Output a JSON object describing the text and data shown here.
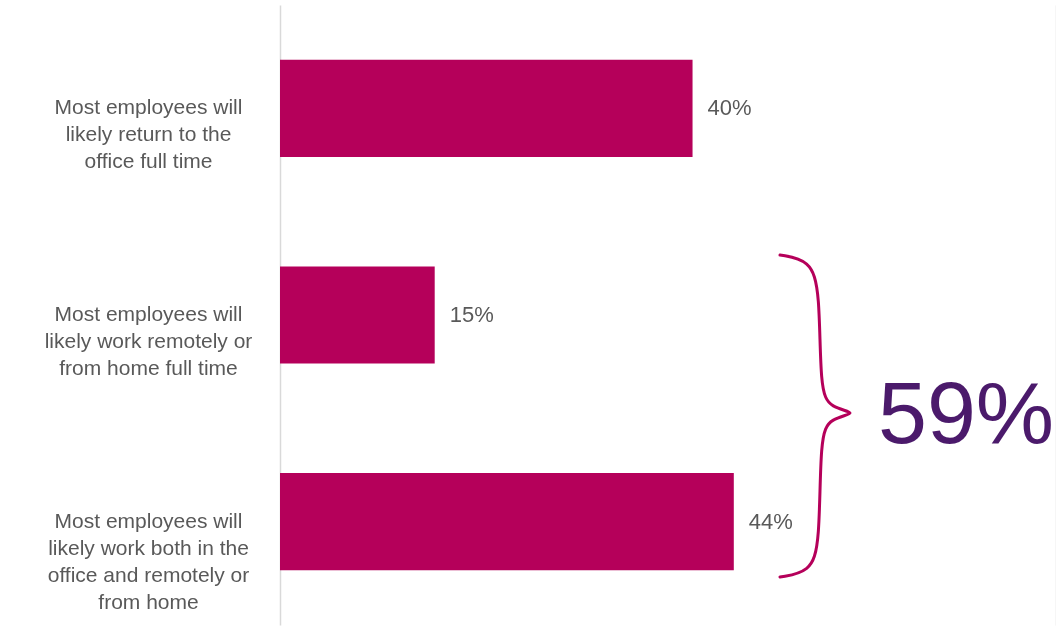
{
  "chart_data": {
    "type": "bar",
    "orientation": "horizontal",
    "categories": [
      "Most employees will likely return to the office full time",
      "Most employees will likely work remotely or from home full time",
      "Most employees will likely work both in the office and remotely or from home"
    ],
    "values": [
      40,
      15,
      44
    ],
    "color": "#b5005a",
    "value_labels": [
      "40%",
      "15%",
      "44%"
    ],
    "annotations": [
      "59%"
    ]
  }
}
